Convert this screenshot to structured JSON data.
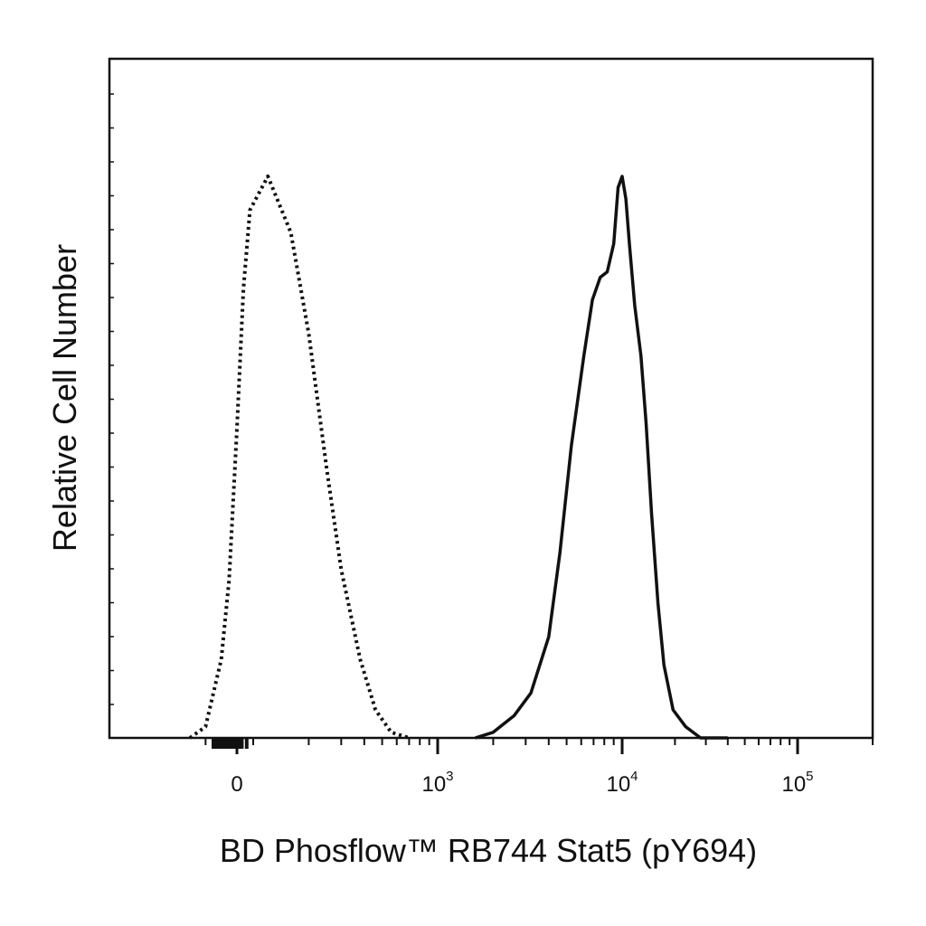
{
  "chart_data": {
    "type": "line",
    "title": "",
    "xlabel": "BD Phosflow™  RB744  Stat5 (pY694)",
    "ylabel": "Relative Cell Number",
    "x_scale": "biexponential",
    "x_ticks": [
      {
        "base": "0",
        "exp": "",
        "value": 0
      },
      {
        "base": "10",
        "exp": "3",
        "value": 1000
      },
      {
        "base": "10",
        "exp": "4",
        "value": 10000
      },
      {
        "base": "10",
        "exp": "5",
        "value": 100000
      }
    ],
    "xlim": [
      -300,
      200000
    ],
    "ylim": [
      0,
      100
    ],
    "grid": false,
    "legend": "none",
    "series": [
      {
        "style": "dotted",
        "color": "#111111",
        "x": [
          -300,
          -200,
          -100,
          -50,
          0,
          40,
          80,
          120,
          160,
          200,
          250,
          300,
          380,
          460,
          560,
          700
        ],
        "y": [
          0,
          2,
          14,
          28,
          55,
          80,
          94,
          100,
          90,
          72,
          48,
          30,
          14,
          5,
          1,
          0
        ]
      },
      {
        "style": "solid",
        "color": "#111111",
        "x": [
          1600,
          2000,
          2600,
          3200,
          4000,
          4600,
          5300,
          6200,
          6900,
          7600,
          8300,
          9000,
          9500,
          10000,
          10500,
          11000,
          11800,
          12800,
          13700,
          14700,
          16000,
          17300,
          19500,
          23000,
          28000,
          40000
        ],
        "y": [
          0,
          1,
          4,
          8,
          18,
          33,
          52,
          68,
          78,
          82,
          83,
          88,
          98,
          100,
          96,
          88,
          77,
          68,
          56,
          40,
          24,
          13,
          5,
          2,
          0,
          0
        ]
      }
    ]
  }
}
